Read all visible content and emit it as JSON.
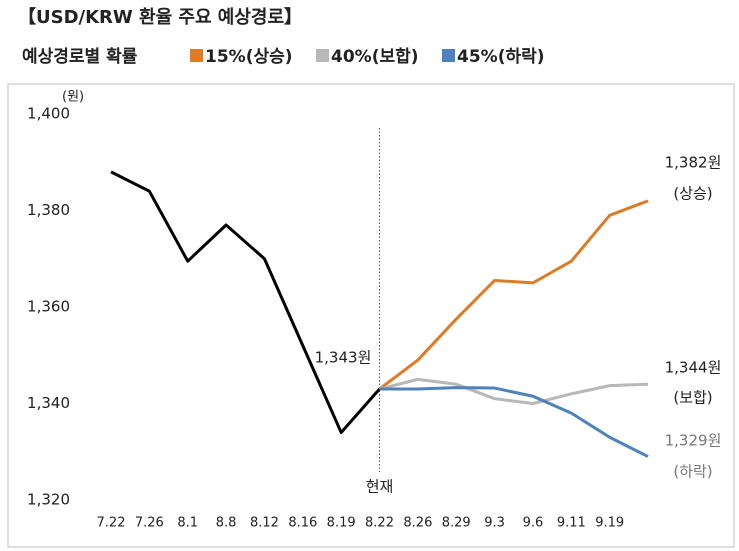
{
  "chart_data": {
    "type": "line",
    "title": "【USD/KRW 환율 주요 예상경로】",
    "legend_title": "예상경로별 확률",
    "y_unit": "(원)",
    "categories": [
      "7.22",
      "7.26",
      "8.1",
      "8.8",
      "8.12",
      "8.16",
      "8.19",
      "8.22",
      "8.26",
      "8.29",
      "9.3",
      "9.6",
      "9.11",
      "9.19",
      null
    ],
    "series": [
      {
        "color": "#000000",
        "values": [
          1388,
          1384,
          1369.5,
          1377,
          1370,
          1352,
          1334,
          1343,
          null,
          null,
          null,
          null,
          null,
          null,
          null
        ]
      },
      {
        "name": "15%(상승)",
        "color": "#e07b25",
        "values": [
          null,
          null,
          null,
          null,
          null,
          null,
          null,
          1343,
          1349,
          1357.5,
          1365.5,
          1365,
          1369.5,
          1379,
          1382
        ]
      },
      {
        "name": "40%(보합)",
        "color": "#b8b8b8",
        "values": [
          null,
          null,
          null,
          null,
          null,
          null,
          null,
          1343,
          1345,
          1344,
          1341,
          1340,
          1342,
          1343.7,
          1344
        ]
      },
      {
        "name": "45%(하락)",
        "color": "#4f81bd",
        "values": [
          null,
          null,
          null,
          null,
          null,
          null,
          null,
          1343,
          1343,
          1343.3,
          1343.2,
          1341.5,
          1338,
          1333,
          1329
        ]
      }
    ],
    "ylim": [
      1320,
      1400
    ],
    "yticks": [
      {
        "value": 1320,
        "label": "1,320"
      },
      {
        "value": 1340,
        "label": "1,340"
      },
      {
        "value": 1360,
        "label": "1,360"
      },
      {
        "value": 1380,
        "label": "1,380"
      },
      {
        "value": 1400,
        "label": "1,400"
      }
    ],
    "grid": false,
    "annotations": [
      {
        "text": "1,343원"
      },
      {
        "text": "현재",
        "category": "8.22"
      },
      {
        "text": "1,382원"
      },
      {
        "text": "(상승)"
      },
      {
        "text": "1,344원"
      },
      {
        "text": "(보합)"
      },
      {
        "text": "1,329원"
      },
      {
        "text": "(하락)"
      }
    ]
  }
}
